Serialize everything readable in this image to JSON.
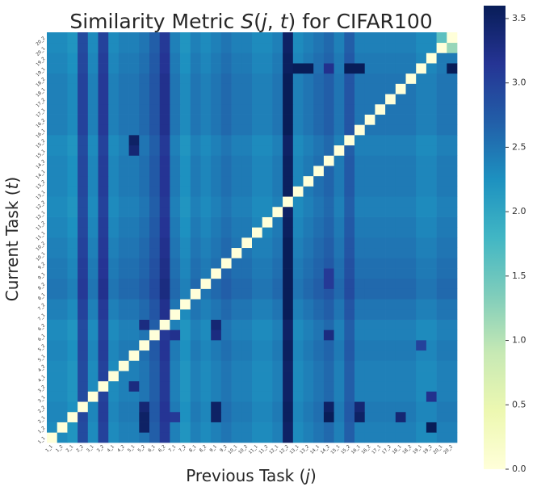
{
  "chart_data": {
    "type": "heatmap",
    "title": "Similarity Metric S(j, t) for CIFAR100",
    "title_parts": {
      "prefix": "Similarity Metric ",
      "func": "S",
      "open": "(",
      "j": "j",
      "comma": ", ",
      "t": "t",
      "close": ")",
      "suffix": " for CIFAR100"
    },
    "xlabel": "Previous Task (j)",
    "xlabel_parts": {
      "prefix": "Previous Task (",
      "var": "j",
      "suffix": ")"
    },
    "ylabel": "Current Task (t)",
    "ylabel_parts": {
      "prefix": "Current Task (",
      "var": "t",
      "suffix": ")"
    },
    "colormap": "YlGnBu",
    "colorbar": {
      "min": 0.0,
      "max": 3.6,
      "ticks": [
        0.0,
        0.5,
        1.0,
        1.5,
        2.0,
        2.5,
        3.0,
        3.5
      ],
      "tick_labels": [
        "0.0",
        "0.5",
        "1.0",
        "1.5",
        "2.0",
        "2.5",
        "3.0",
        "3.5"
      ]
    },
    "task_labels": [
      "1_1",
      "1_2",
      "2_1",
      "2_2",
      "3_1",
      "3_2",
      "4_1",
      "4_2",
      "5_1",
      "5_2",
      "6_1",
      "6_2",
      "7_1",
      "7_2",
      "8_1",
      "8_2",
      "9_1",
      "9_2",
      "10_1",
      "10_2",
      "11_1",
      "11_2",
      "12_1",
      "12_2",
      "13_1",
      "13_2",
      "14_1",
      "14_2",
      "15_1",
      "15_2",
      "16_1",
      "16_2",
      "17_1",
      "17_2",
      "18_1",
      "18_2",
      "19_1",
      "19_2",
      "20_1",
      "20_2"
    ],
    "diagonal_value": 0.0,
    "base_value": 2.3,
    "column_means": [
      2.3,
      2.3,
      2.2,
      2.9,
      2.3,
      3.0,
      2.3,
      2.4,
      2.4,
      2.5,
      2.7,
      3.1,
      2.4,
      2.2,
      2.4,
      2.3,
      2.4,
      2.5,
      2.4,
      2.4,
      2.3,
      2.3,
      2.4,
      3.5,
      2.3,
      2.4,
      2.5,
      2.6,
      2.4,
      2.7,
      2.4,
      2.4,
      2.4,
      2.4,
      2.4,
      2.4,
      2.3,
      2.3,
      2.4,
      2.4
    ],
    "row_offsets": [
      0.0,
      0.0,
      0.05,
      0.05,
      0.0,
      0.0,
      0.0,
      0.0,
      0.05,
      0.05,
      0.0,
      0.0,
      0.1,
      0.1,
      0.2,
      0.2,
      0.15,
      0.15,
      0.1,
      0.1,
      0.05,
      0.05,
      0.0,
      0.0,
      0.05,
      0.05,
      0.05,
      0.05,
      0.0,
      0.0,
      0.1,
      0.1,
      0.1,
      0.1,
      0.1,
      0.1,
      0.05,
      0.05,
      0.0,
      0.0
    ],
    "overrides": [
      {
        "t": "1_2",
        "j": "19_2",
        "value": 3.6
      },
      {
        "t": "1_2",
        "j": "5_2",
        "value": 3.5
      },
      {
        "t": "2_1",
        "j": "5_2",
        "value": 3.5
      },
      {
        "t": "2_1",
        "j": "9_1",
        "value": 3.5
      },
      {
        "t": "2_1",
        "j": "14_2",
        "value": 3.6
      },
      {
        "t": "2_1",
        "j": "16_1",
        "value": 3.5
      },
      {
        "t": "2_1",
        "j": "18_1",
        "value": 3.4
      },
      {
        "t": "2_1",
        "j": "7_1",
        "value": 3.1
      },
      {
        "t": "2_2",
        "j": "5_2",
        "value": 3.4
      },
      {
        "t": "2_2",
        "j": "9_1",
        "value": 3.5
      },
      {
        "t": "2_2",
        "j": "14_2",
        "value": 3.5
      },
      {
        "t": "2_2",
        "j": "16_1",
        "value": 3.4
      },
      {
        "t": "3_1",
        "j": "19_2",
        "value": 3.2
      },
      {
        "t": "3_2",
        "j": "5_1",
        "value": 3.3
      },
      {
        "t": "5_2",
        "j": "19_1",
        "value": 3.0
      },
      {
        "t": "6_1",
        "j": "9_1",
        "value": 3.3
      },
      {
        "t": "6_1",
        "j": "14_2",
        "value": 3.3
      },
      {
        "t": "6_1",
        "j": "7_1",
        "value": 3.2
      },
      {
        "t": "6_2",
        "j": "9_1",
        "value": 3.4
      },
      {
        "t": "6_2",
        "j": "5_2",
        "value": 3.3
      },
      {
        "t": "15_2",
        "j": "5_1",
        "value": 3.5
      },
      {
        "t": "15_1",
        "j": "5_1",
        "value": 3.4
      },
      {
        "t": "19_1",
        "j": "13_1",
        "value": 3.6
      },
      {
        "t": "19_1",
        "j": "13_2",
        "value": 3.6
      },
      {
        "t": "19_1",
        "j": "14_2",
        "value": 3.2
      },
      {
        "t": "19_1",
        "j": "15_2",
        "value": 3.6
      },
      {
        "t": "19_1",
        "j": "16_1",
        "value": 3.6
      },
      {
        "t": "19_1",
        "j": "20_2",
        "value": 3.6
      },
      {
        "t": "9_1",
        "j": "14_2",
        "value": 3.1
      },
      {
        "t": "8_2",
        "j": "14_2",
        "value": 3.1
      },
      {
        "t": "20_2",
        "j": "20_1",
        "value": 1.6
      },
      {
        "t": "20_1",
        "j": "20_2",
        "value": 1.2
      }
    ]
  }
}
